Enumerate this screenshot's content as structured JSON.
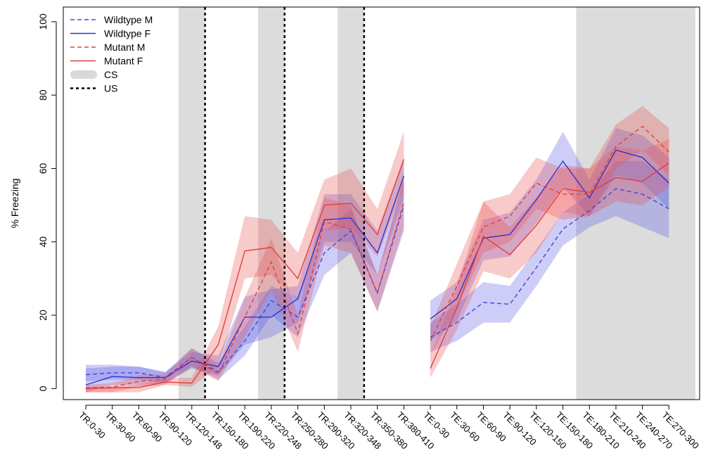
{
  "chart_data": {
    "type": "line",
    "title": "",
    "xlabel": "",
    "ylabel": "% Freezing",
    "ylim": [
      -3,
      104
    ],
    "yticks": [
      0,
      20,
      40,
      60,
      80,
      100
    ],
    "grid": false,
    "legend_position": "top-left",
    "categories": [
      "TR:0-30",
      "TR:30-60",
      "TR:60-90",
      "TR:90-120",
      "TR:120-148",
      "TR:150-180",
      "TR:190-220",
      "TR:220-248",
      "TR:250-280",
      "TR:290-320",
      "TR:320-348",
      "TR:350-380",
      "TR:380-410",
      "TE:0-30",
      "TE:30-60",
      "TE:60-90",
      "TE:90-120",
      "TE:120-150",
      "TE:150-180",
      "TE:180-210",
      "TE:210-240",
      "TE:240-270",
      "TE:270-300"
    ],
    "cs_periods": [
      [
        3.5,
        4.5
      ],
      [
        6.5,
        7.5
      ],
      [
        9.5,
        10.5
      ],
      [
        18.5,
        23
      ]
    ],
    "us_marks": [
      4.5,
      7.5,
      10.5
    ],
    "segments": [
      [
        0,
        12
      ],
      [
        13,
        22
      ]
    ],
    "series": [
      {
        "name": "Wildtype M",
        "color": "#4444dd",
        "dash": "6,4",
        "values": [
          3.8,
          4.3,
          4.3,
          3.0,
          8.5,
          4.5,
          13.0,
          24.0,
          19.5,
          37.0,
          43.0,
          26.0,
          50.0,
          14.0,
          18.0,
          23.5,
          23.0,
          33.0,
          43.5,
          48.5,
          54.5,
          53.0,
          49.0
        ],
        "lower": [
          2.0,
          2.5,
          2.5,
          1.5,
          6.0,
          2.5,
          9.0,
          20.0,
          14.0,
          31.0,
          37.0,
          21.0,
          43.0,
          10.0,
          13.0,
          18.0,
          18.0,
          28.0,
          39.0,
          44.0,
          47.0,
          44.0,
          41.0
        ],
        "upper": [
          5.5,
          6.0,
          6.0,
          4.5,
          11.0,
          7.0,
          17.0,
          28.0,
          25.0,
          43.0,
          49.0,
          31.0,
          57.0,
          18.0,
          23.0,
          29.0,
          28.0,
          38.0,
          48.0,
          53.0,
          62.0,
          62.0,
          57.0
        ]
      },
      {
        "name": "Wildtype F",
        "color": "#3333cc",
        "dash": "",
        "values": [
          1.0,
          3.3,
          3.0,
          3.0,
          7.5,
          6.0,
          19.5,
          19.5,
          24.5,
          46.0,
          46.5,
          37.0,
          58.0,
          19.0,
          24.5,
          41.0,
          42.0,
          51.5,
          62.0,
          52.0,
          65.0,
          63.0,
          56.0
        ],
        "lower": [
          -1.0,
          1.0,
          1.0,
          1.5,
          5.5,
          3.5,
          12.0,
          14.0,
          18.0,
          40.0,
          40.0,
          31.0,
          52.0,
          13.0,
          18.5,
          35.0,
          36.0,
          45.0,
          55.0,
          47.0,
          58.0,
          56.0,
          49.0
        ],
        "upper": [
          6.5,
          6.5,
          6.0,
          4.5,
          10.0,
          9.0,
          25.0,
          27.0,
          28.0,
          53.0,
          53.0,
          43.0,
          63.0,
          24.0,
          29.0,
          46.0,
          48.0,
          57.0,
          70.0,
          57.0,
          71.0,
          69.0,
          63.0
        ]
      },
      {
        "name": "Mutant M",
        "color": "#e04040",
        "dash": "6,4",
        "values": [
          0.2,
          0.4,
          2.0,
          2.5,
          8.5,
          4.0,
          19.5,
          34.5,
          15.0,
          45.5,
          43.5,
          26.0,
          51.0,
          13.0,
          28.0,
          44.0,
          47.0,
          56.0,
          53.0,
          53.0,
          66.0,
          71.5,
          64.5
        ],
        "lower": [
          -1.0,
          -1.0,
          0.5,
          1.0,
          6.0,
          2.0,
          14.0,
          27.0,
          10.0,
          39.0,
          37.0,
          21.0,
          44.0,
          9.0,
          22.0,
          37.0,
          40.0,
          49.0,
          46.0,
          47.0,
          60.0,
          65.0,
          58.0
        ],
        "upper": [
          1.0,
          1.5,
          3.5,
          4.0,
          11.0,
          6.0,
          25.0,
          41.0,
          20.0,
          52.0,
          50.0,
          31.0,
          58.0,
          17.0,
          34.0,
          51.0,
          53.0,
          63.0,
          60.0,
          60.0,
          72.0,
          77.0,
          71.0
        ]
      },
      {
        "name": "Mutant F",
        "color": "#e04040",
        "dash": "",
        "values": [
          0.0,
          0.2,
          0.3,
          1.8,
          1.5,
          12.0,
          37.5,
          38.5,
          30.0,
          50.0,
          50.5,
          42.0,
          62.5,
          5.5,
          22.0,
          41.5,
          36.5,
          44.5,
          54.5,
          53.5,
          57.5,
          56.5,
          61.5
        ],
        "lower": [
          -1.0,
          -1.0,
          -1.0,
          1.0,
          0.5,
          6.0,
          30.0,
          31.0,
          24.0,
          43.0,
          44.0,
          36.0,
          55.0,
          3.0,
          16.0,
          32.0,
          30.0,
          37.0,
          48.0,
          47.0,
          51.0,
          50.0,
          55.0
        ],
        "upper": [
          0.5,
          0.5,
          1.0,
          2.8,
          3.0,
          17.0,
          47.0,
          46.0,
          37.0,
          57.0,
          60.0,
          49.0,
          70.0,
          9.0,
          28.0,
          51.0,
          44.0,
          52.0,
          61.0,
          60.0,
          66.0,
          65.0,
          68.0
        ]
      }
    ]
  },
  "legend": {
    "items": [
      {
        "label": "Wildtype M",
        "kind": "line",
        "color": "#4444dd",
        "dash": "6,4"
      },
      {
        "label": "Wildtype F",
        "kind": "line",
        "color": "#3333cc",
        "dash": ""
      },
      {
        "label": "Mutant M",
        "kind": "line",
        "color": "#e04040",
        "dash": "6,4"
      },
      {
        "label": "Mutant F",
        "kind": "line",
        "color": "#e04040",
        "dash": ""
      },
      {
        "label": "CS",
        "kind": "band",
        "color": "#d9d9d9",
        "dash": ""
      },
      {
        "label": "US",
        "kind": "line",
        "color": "#000000",
        "dash": "4,4"
      }
    ]
  },
  "colors": {
    "cs_band": "#dcdcdc",
    "us_line": "#000000",
    "blue_band": "rgba(90,90,230,0.30)",
    "red_band": "rgba(235,80,80,0.30)"
  }
}
